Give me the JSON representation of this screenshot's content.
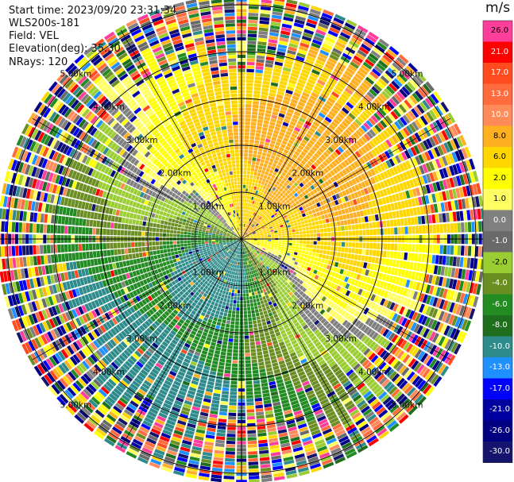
{
  "header": {
    "start_time": "Start time: 2023/09/20 23:31:34",
    "instrument": "WLS200s-181",
    "field": "Field: VEL",
    "elevation": "Elevation(deg): 35.30",
    "nrays": "NRays: 120"
  },
  "chart_data": {
    "type": "heatmap",
    "projection": "polar-ppi",
    "n_rays": 120,
    "range_rings_km": [
      1,
      2,
      3,
      4,
      5
    ],
    "ring_labels": {
      "nw": [
        "1.00km",
        "2.00km",
        "3.00km",
        "4.00km",
        "5.00km"
      ],
      "ne": [
        "1.00km",
        "2.00km",
        "3.00km",
        "4.00km",
        "5.00km"
      ],
      "sw": [
        "1.00km",
        "2.00km",
        "3.00km",
        "4.00km",
        "5.00km"
      ],
      "se": [
        "1.00km",
        "2.00km",
        "3.00km",
        "4.00km",
        "5.00km"
      ]
    },
    "colorbar": {
      "unit": "m/s",
      "ticks": [
        "26.0",
        "21.0",
        "17.0",
        "13.0",
        "10.0",
        "8.0",
        "6.0",
        "2.0",
        "1.0",
        "0.0",
        "-1.0",
        "-2.0",
        "-4.0",
        "-6.0",
        "-8.0",
        "-10.0",
        "-13.0",
        "-17.0",
        "-21.0",
        "-26.0",
        "-30.0"
      ],
      "colors": [
        "#ff3d9a",
        "#ff0000",
        "#ff4b1e",
        "#ff6b3c",
        "#ff8a5a",
        "#ffb020",
        "#ffd700",
        "#ffff00",
        "#ffff64",
        "#808080",
        "#6a6a6a",
        "#9acd32",
        "#6b8e23",
        "#228b22",
        "#1e6e1e",
        "#2e8b8b",
        "#1e90ff",
        "#0000ff",
        "#0000a0",
        "#000080",
        "#14146e"
      ],
      "text_colors": [
        "#000000",
        "#ffffff",
        "#ffffff",
        "#ffffff",
        "#ffffff",
        "#000000",
        "#000000",
        "#000000",
        "#000000",
        "#ffffff",
        "#ffffff",
        "#000000",
        "#ffffff",
        "#ffffff",
        "#ffffff",
        "#ffffff",
        "#ffffff",
        "#ffffff",
        "#ffffff",
        "#ffffff",
        "#ffffff"
      ]
    }
  }
}
